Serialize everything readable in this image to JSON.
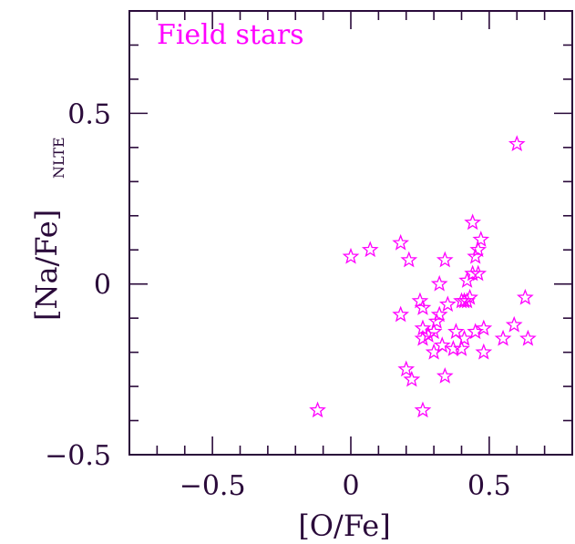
{
  "chart_data": {
    "type": "scatter",
    "xlabel": "[O/Fe]",
    "ylabel_main": "[Na/Fe]",
    "ylabel_sub": "NLTE",
    "annotation": "Field stars",
    "xlim": [
      -0.8,
      0.8
    ],
    "ylim": [
      -0.5,
      0.8
    ],
    "x_ticks": [
      -0.5,
      0,
      0.5
    ],
    "x_tick_labels": [
      "−0.5",
      "0",
      "0.5"
    ],
    "y_ticks": [
      -0.5,
      0,
      0.5
    ],
    "y_tick_labels": [
      "−0.5",
      "0",
      "0.5"
    ],
    "x_minor_step": 0.1,
    "y_minor_step": 0.1,
    "grid": false,
    "marker": "star",
    "series": [
      {
        "color": "#ff00ff",
        "points": [
          [
            -0.12,
            -0.37
          ],
          [
            0.0,
            0.08
          ],
          [
            0.07,
            0.1
          ],
          [
            0.18,
            0.12
          ],
          [
            0.21,
            0.07
          ],
          [
            0.18,
            -0.09
          ],
          [
            0.2,
            -0.25
          ],
          [
            0.22,
            -0.28
          ],
          [
            0.25,
            -0.05
          ],
          [
            0.26,
            -0.07
          ],
          [
            0.26,
            -0.13
          ],
          [
            0.26,
            -0.16
          ],
          [
            0.26,
            -0.37
          ],
          [
            0.28,
            -0.15
          ],
          [
            0.3,
            -0.2
          ],
          [
            0.3,
            -0.14
          ],
          [
            0.31,
            -0.11
          ],
          [
            0.32,
            0.0
          ],
          [
            0.32,
            -0.09
          ],
          [
            0.33,
            -0.18
          ],
          [
            0.34,
            0.07
          ],
          [
            0.34,
            -0.27
          ],
          [
            0.35,
            -0.06
          ],
          [
            0.37,
            -0.19
          ],
          [
            0.38,
            -0.14
          ],
          [
            0.4,
            -0.05
          ],
          [
            0.4,
            -0.19
          ],
          [
            0.41,
            -0.05
          ],
          [
            0.41,
            -0.16
          ],
          [
            0.42,
            -0.05
          ],
          [
            0.42,
            0.01
          ],
          [
            0.43,
            -0.04
          ],
          [
            0.44,
            0.03
          ],
          [
            0.44,
            0.18
          ],
          [
            0.45,
            0.08
          ],
          [
            0.45,
            -0.14
          ],
          [
            0.46,
            0.03
          ],
          [
            0.46,
            0.1
          ],
          [
            0.47,
            0.13
          ],
          [
            0.48,
            -0.13
          ],
          [
            0.48,
            -0.2
          ],
          [
            0.55,
            -0.16
          ],
          [
            0.59,
            -0.12
          ],
          [
            0.6,
            0.41
          ],
          [
            0.63,
            -0.04
          ],
          [
            0.64,
            -0.16
          ]
        ]
      }
    ]
  },
  "colors": {
    "axis": "#2a0a3a",
    "marker": "#ff00ff",
    "annotation": "#ff00ff"
  }
}
